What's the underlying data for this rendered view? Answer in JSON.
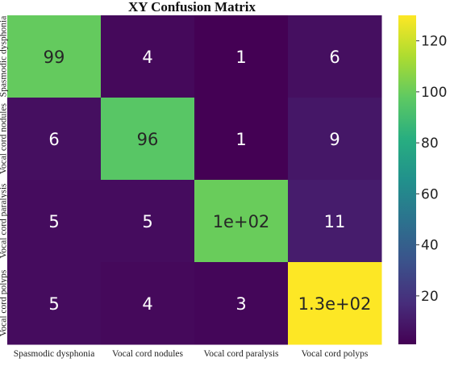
{
  "chart_data": {
    "type": "heatmap",
    "title": "XY Confusion Matrix",
    "x_labels": [
      "Spasmodic dysphonia",
      "Vocal cord nodules",
      "Vocal cord paralysis",
      "Vocal cord polyps"
    ],
    "y_labels": [
      "Spasmodic dysphonia",
      "Vocal cord nodules",
      "Vocal cord paralysis",
      "Vocal cord polyps"
    ],
    "values": [
      [
        99,
        4,
        1,
        6
      ],
      [
        6,
        96,
        1,
        9
      ],
      [
        5,
        5,
        100,
        11
      ],
      [
        5,
        4,
        3,
        130
      ]
    ],
    "annotations": [
      [
        "99",
        "4",
        "1",
        "6"
      ],
      [
        "6",
        "96",
        "1",
        "9"
      ],
      [
        "5",
        "5",
        "1e+02",
        "11"
      ],
      [
        "5",
        "4",
        "3",
        "1.3e+02"
      ]
    ],
    "colormap": "viridis",
    "vmin": 1,
    "vmax": 130,
    "colorbar_ticks": [
      20,
      40,
      60,
      80,
      100,
      120
    ]
  }
}
